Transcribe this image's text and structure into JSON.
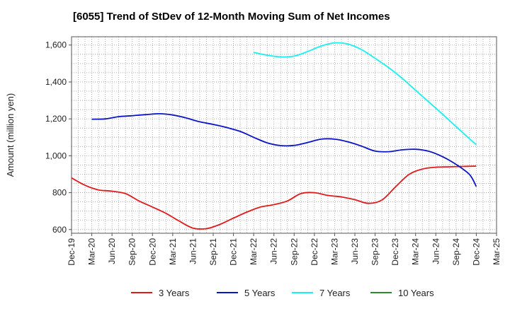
{
  "chart_data": {
    "type": "line",
    "title": "[6055]  Trend of StDev of 12-Month Moving Sum of Net Incomes",
    "ylabel": "Amount (million yen)",
    "xlabel": "",
    "ylim": [
      580,
      1645
    ],
    "yticks": [
      600,
      800,
      1000,
      1200,
      1400,
      1600
    ],
    "ytick_labels": [
      "600",
      "800",
      "1,000",
      "1,200",
      "1,400",
      "1,600"
    ],
    "x_start": "Dec-19",
    "x_end": "Mar-25",
    "xtick_labels": [
      "Dec-19",
      "Mar-20",
      "Jun-20",
      "Sep-20",
      "Dec-20",
      "Mar-21",
      "Jun-21",
      "Sep-21",
      "Dec-21",
      "Mar-22",
      "Jun-22",
      "Sep-22",
      "Dec-22",
      "Mar-23",
      "Jun-23",
      "Sep-23",
      "Dec-23",
      "Mar-24",
      "Jun-24",
      "Sep-24",
      "Dec-24",
      "Mar-25"
    ],
    "grid": true,
    "legend_position": "bottom",
    "series": [
      {
        "name": "3 Years",
        "color": "#e31a1c",
        "points": [
          [
            "Dec-19",
            880
          ],
          [
            "Feb-20",
            840
          ],
          [
            "Apr-20",
            815
          ],
          [
            "Jun-20",
            808
          ],
          [
            "Aug-20",
            795
          ],
          [
            "Oct-20",
            755
          ],
          [
            "Dec-20",
            722
          ],
          [
            "Feb-21",
            688
          ],
          [
            "Apr-21",
            645
          ],
          [
            "Jun-21",
            608
          ],
          [
            "Aug-21",
            605
          ],
          [
            "Oct-21",
            628
          ],
          [
            "Dec-21",
            662
          ],
          [
            "Feb-22",
            695
          ],
          [
            "Apr-22",
            722
          ],
          [
            "Jun-22",
            735
          ],
          [
            "Aug-22",
            755
          ],
          [
            "Oct-22",
            795
          ],
          [
            "Dec-22",
            800
          ],
          [
            "Feb-23",
            785
          ],
          [
            "Apr-23",
            777
          ],
          [
            "Jun-23",
            762
          ],
          [
            "Aug-23",
            742
          ],
          [
            "Oct-23",
            760
          ],
          [
            "Dec-23",
            830
          ],
          [
            "Feb-24",
            898
          ],
          [
            "Apr-24",
            928
          ],
          [
            "Jun-24",
            938
          ],
          [
            "Aug-24",
            940
          ],
          [
            "Oct-24",
            942
          ],
          [
            "Dec-24",
            944
          ]
        ]
      },
      {
        "name": "5 Years",
        "color": "#0a14c8",
        "points": [
          [
            "Mar-20",
            1198
          ],
          [
            "May-20",
            1200
          ],
          [
            "Jul-20",
            1212
          ],
          [
            "Sep-20",
            1217
          ],
          [
            "Nov-20",
            1223
          ],
          [
            "Jan-21",
            1228
          ],
          [
            "Mar-21",
            1221
          ],
          [
            "May-21",
            1205
          ],
          [
            "Jul-21",
            1184
          ],
          [
            "Sep-21",
            1170
          ],
          [
            "Nov-21",
            1153
          ],
          [
            "Jan-22",
            1132
          ],
          [
            "Mar-22",
            1100
          ],
          [
            "May-22",
            1070
          ],
          [
            "Jul-22",
            1055
          ],
          [
            "Sep-22",
            1056
          ],
          [
            "Nov-22",
            1072
          ],
          [
            "Jan-23",
            1090
          ],
          [
            "Mar-23",
            1090
          ],
          [
            "May-23",
            1075
          ],
          [
            "Jul-23",
            1052
          ],
          [
            "Sep-23",
            1025
          ],
          [
            "Nov-23",
            1022
          ],
          [
            "Jan-24",
            1032
          ],
          [
            "Mar-24",
            1035
          ],
          [
            "May-24",
            1024
          ],
          [
            "Jul-24",
            995
          ],
          [
            "Sep-24",
            953
          ],
          [
            "Nov-24",
            898
          ],
          [
            "Dec-24",
            833
          ]
        ]
      },
      {
        "name": "7 Years",
        "color": "#19f0f0",
        "points": [
          [
            "Mar-22",
            1560
          ],
          [
            "May-22",
            1545
          ],
          [
            "Jul-22",
            1536
          ],
          [
            "Sep-22",
            1540
          ],
          [
            "Nov-22",
            1565
          ],
          [
            "Jan-23",
            1595
          ],
          [
            "Mar-23",
            1612
          ],
          [
            "May-23",
            1605
          ],
          [
            "Jul-23",
            1575
          ],
          [
            "Sep-23",
            1528
          ],
          [
            "Nov-23",
            1478
          ],
          [
            "Jan-24",
            1420
          ],
          [
            "Mar-24",
            1355
          ],
          [
            "May-24",
            1290
          ],
          [
            "Jul-24",
            1225
          ],
          [
            "Sep-24",
            1158
          ],
          [
            "Nov-24",
            1092
          ],
          [
            "Dec-24",
            1060
          ]
        ]
      },
      {
        "name": "10 Years",
        "color": "#2e8b2e",
        "points": []
      }
    ]
  }
}
